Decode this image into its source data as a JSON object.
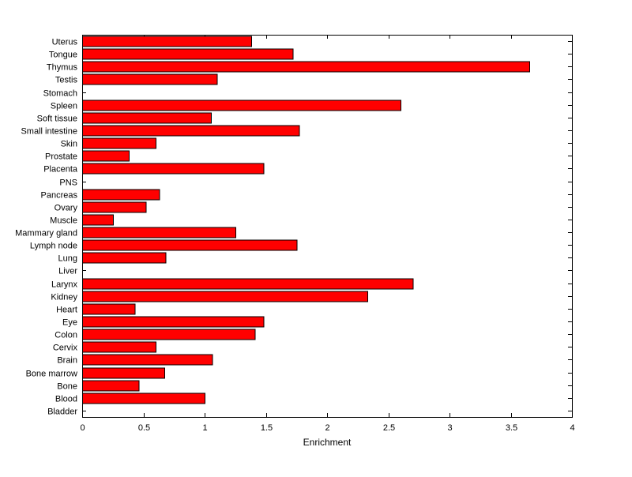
{
  "chart_data": {
    "type": "bar",
    "orientation": "horizontal",
    "title": "",
    "xlabel": "Enrichment",
    "ylabel": "",
    "xlim": [
      0,
      4
    ],
    "xticks": [
      0,
      0.5,
      1,
      1.5,
      2,
      2.5,
      3,
      3.5,
      4
    ],
    "grid": false,
    "legend": "none",
    "bar_color": "#ff0000",
    "bar_edge_color": "#000000",
    "categories": [
      "Uterus",
      "Tongue",
      "Thymus",
      "Testis",
      "Stomach",
      "Spleen",
      "Soft tissue",
      "Small intestine",
      "Skin",
      "Prostate",
      "Placenta",
      "PNS",
      "Pancreas",
      "Ovary",
      "Muscle",
      "Mammary gland",
      "Lymph node",
      "Lung",
      "Liver",
      "Larynx",
      "Kidney",
      "Heart",
      "Eye",
      "Colon",
      "Cervix",
      "Brain",
      "Bone marrow",
      "Bone",
      "Blood",
      "Bladder"
    ],
    "values": [
      1.38,
      1.72,
      3.65,
      1.1,
      0,
      2.6,
      1.05,
      1.77,
      0.6,
      0.38,
      1.48,
      0,
      0.63,
      0.52,
      0.25,
      1.25,
      1.75,
      0.68,
      0,
      2.7,
      2.33,
      0.43,
      1.48,
      1.41,
      0.6,
      1.06,
      0.67,
      0.46,
      1.0,
      0
    ]
  }
}
